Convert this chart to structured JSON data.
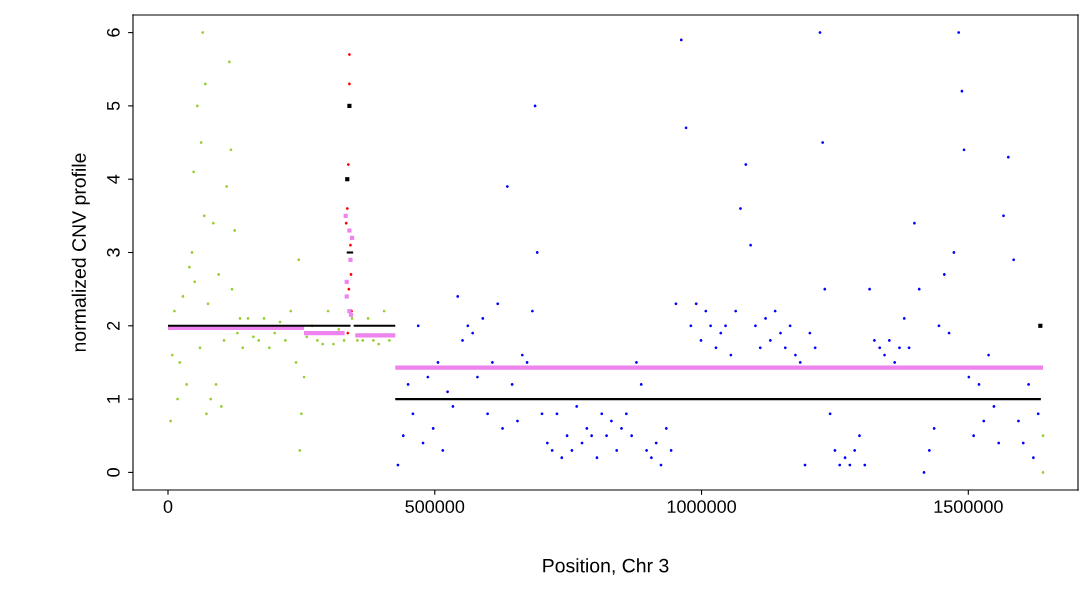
{
  "chart_data": {
    "type": "scatter",
    "xlabel": "Position, Chr 3",
    "ylabel": "normalized CNV profile",
    "xlim": [
      -65600,
      1705600
    ],
    "ylim": [
      -0.24,
      6.24
    ],
    "xticks": [
      0,
      500000,
      1000000,
      1500000
    ],
    "yticks": [
      0,
      1,
      2,
      3,
      4,
      5,
      6
    ],
    "grid": false,
    "legend": false,
    "series": [
      {
        "color": "#9acd32",
        "marker": "circle",
        "x": [
          5000,
          8000,
          12000,
          18000,
          22000,
          28000,
          35000,
          40000,
          45000,
          48000,
          50000,
          55000,
          60000,
          62000,
          65000,
          68000,
          70000,
          72000,
          75000,
          80000,
          85000,
          90000,
          95000,
          100000,
          105000,
          110000,
          115000,
          118000,
          120000,
          125000,
          130000,
          135000,
          140000,
          150000,
          160000,
          170000,
          180000,
          190000,
          200000,
          210000,
          220000,
          230000,
          240000,
          245000,
          247000,
          250000,
          255000,
          260000,
          270000,
          280000,
          290000,
          300000,
          310000,
          320000,
          330000,
          345000,
          355000,
          365000,
          375000,
          385000,
          395000,
          405000,
          415000,
          1640000,
          1640000
        ],
        "values": [
          0.7,
          1.6,
          2.2,
          1.0,
          1.5,
          2.4,
          1.2,
          2.8,
          3.0,
          4.1,
          2.6,
          5.0,
          1.7,
          4.5,
          6.0,
          3.5,
          5.3,
          0.8,
          2.3,
          1.0,
          3.4,
          1.2,
          2.7,
          0.9,
          1.8,
          3.9,
          5.6,
          4.4,
          2.5,
          3.3,
          1.9,
          2.1,
          1.7,
          2.1,
          1.85,
          1.8,
          2.1,
          1.7,
          1.9,
          2.05,
          1.8,
          2.2,
          1.5,
          2.9,
          0.3,
          0.8,
          1.3,
          1.85,
          2.0,
          1.8,
          1.75,
          2.2,
          1.75,
          1.95,
          1.8,
          2.1,
          1.8,
          1.8,
          2.1,
          1.8,
          1.75,
          2.2,
          1.8,
          0.0,
          0.5
        ]
      },
      {
        "color": "#ff0000",
        "marker": "circle",
        "x": [
          340000,
          340000,
          338000,
          336000,
          334000,
          342000,
          343000,
          339000,
          344000,
          337000
        ],
        "values": [
          5.7,
          5.3,
          4.2,
          3.6,
          3.4,
          3.1,
          2.7,
          2.5,
          2.2,
          1.9
        ]
      },
      {
        "color": "#0000ff",
        "marker": "circle",
        "x": [
          431000,
          441000,
          450000,
          459000,
          469000,
          478000,
          487000,
          497000,
          506000,
          515000,
          524000,
          534000,
          543000,
          552000,
          562000,
          571000,
          580000,
          590000,
          599000,
          608000,
          618000,
          627000,
          636000,
          645000,
          655000,
          664000,
          673000,
          683000,
          688000,
          692000,
          701000,
          711000,
          720000,
          729000,
          738000,
          748000,
          757000,
          766000,
          776000,
          785000,
          794000,
          804000,
          813000,
          822000,
          831000,
          841000,
          850000,
          859000,
          869000,
          878000,
          887000,
          897000,
          906000,
          915000,
          924000,
          934000,
          943000,
          952000,
          962000,
          971000,
          980000,
          990000,
          999000,
          1008000,
          1017000,
          1027000,
          1036000,
          1045000,
          1055000,
          1064000,
          1073000,
          1083000,
          1092000,
          1101000,
          1110000,
          1120000,
          1129000,
          1138000,
          1148000,
          1157000,
          1166000,
          1176000,
          1185000,
          1194000,
          1203000,
          1213000,
          1222000,
          1227000,
          1231000,
          1241000,
          1250000,
          1259000,
          1269000,
          1278000,
          1287000,
          1296000,
          1306000,
          1315000,
          1324000,
          1334000,
          1343000,
          1352000,
          1362000,
          1371000,
          1380000,
          1389000,
          1399000,
          1408000,
          1417000,
          1427000,
          1436000,
          1445000,
          1455000,
          1464000,
          1473000,
          1482000,
          1488000,
          1492000,
          1501000,
          1510000,
          1520000,
          1529000,
          1538000,
          1548000,
          1557000,
          1566000,
          1575000,
          1585000,
          1594000,
          1603000,
          1613000,
          1622000,
          1631000
        ],
        "values": [
          0.1,
          0.5,
          1.2,
          0.8,
          2.0,
          0.4,
          1.3,
          0.6,
          1.5,
          0.3,
          1.1,
          0.9,
          2.4,
          1.8,
          2.0,
          1.9,
          1.3,
          2.1,
          0.8,
          1.5,
          2.3,
          0.6,
          3.9,
          1.2,
          0.7,
          1.6,
          1.5,
          2.2,
          5.0,
          3.0,
          0.8,
          0.4,
          0.3,
          0.8,
          0.2,
          0.5,
          0.3,
          0.9,
          0.4,
          0.6,
          0.5,
          0.2,
          0.8,
          0.5,
          0.7,
          0.3,
          0.6,
          0.8,
          0.5,
          1.5,
          1.2,
          0.3,
          0.2,
          0.4,
          0.1,
          0.6,
          0.3,
          2.3,
          5.9,
          4.7,
          2.0,
          2.3,
          1.8,
          2.2,
          2.0,
          1.7,
          1.9,
          2.0,
          1.6,
          2.2,
          3.6,
          4.2,
          3.1,
          2.0,
          1.7,
          2.1,
          1.8,
          2.2,
          1.9,
          1.7,
          2.0,
          1.6,
          1.5,
          0.1,
          1.9,
          1.7,
          6.0,
          4.5,
          2.5,
          0.8,
          0.3,
          0.1,
          0.2,
          0.1,
          0.3,
          0.5,
          0.1,
          2.5,
          1.8,
          1.7,
          1.6,
          1.8,
          1.5,
          1.7,
          2.1,
          1.7,
          3.4,
          2.5,
          0.0,
          0.3,
          0.6,
          2.0,
          2.7,
          1.9,
          3.0,
          6.0,
          5.2,
          4.4,
          1.3,
          0.5,
          1.2,
          0.7,
          1.6,
          0.9,
          0.4,
          3.5,
          4.3,
          2.9,
          0.7,
          0.4,
          1.2,
          0.2,
          0.8
        ]
      },
      {
        "color": "#ee82ee",
        "marker": "square",
        "x": [
          333000,
          340000,
          345000,
          342000,
          335000,
          340000,
          343000,
          335000
        ],
        "values": [
          3.5,
          3.3,
          3.2,
          2.9,
          2.4,
          2.2,
          2.15,
          2.6
        ]
      },
      {
        "color": "#000000",
        "marker": "square",
        "x": [
          336000,
          340000,
          1635000
        ],
        "values": [
          4.0,
          5.0,
          2.0
        ]
      },
      {
        "type": "line",
        "color": "#ee82ee",
        "x": [
          0,
          255000
        ],
        "values": [
          1.97,
          1.97
        ]
      },
      {
        "type": "line",
        "color": "#ee82ee",
        "x": [
          255000,
          331000
        ],
        "values": [
          1.9,
          1.9
        ]
      },
      {
        "type": "line",
        "color": "#ee82ee",
        "x": [
          351000,
          426000
        ],
        "values": [
          1.87,
          1.87
        ]
      },
      {
        "type": "line",
        "color": "#ee82ee",
        "x": [
          426000,
          1640000
        ],
        "values": [
          1.43,
          1.43
        ]
      },
      {
        "type": "line",
        "color": "#000000",
        "x": [
          0,
          342000
        ],
        "values": [
          2,
          2
        ]
      },
      {
        "type": "line",
        "color": "#000000",
        "x": [
          348000,
          426000
        ],
        "values": [
          2,
          2
        ]
      },
      {
        "type": "line",
        "color": "#000000",
        "x": [
          426000,
          1636000
        ],
        "values": [
          1,
          1
        ]
      },
      {
        "type": "line",
        "color": "#000000",
        "x": [
          335000,
          347000
        ],
        "values": [
          3,
          3
        ]
      }
    ]
  }
}
